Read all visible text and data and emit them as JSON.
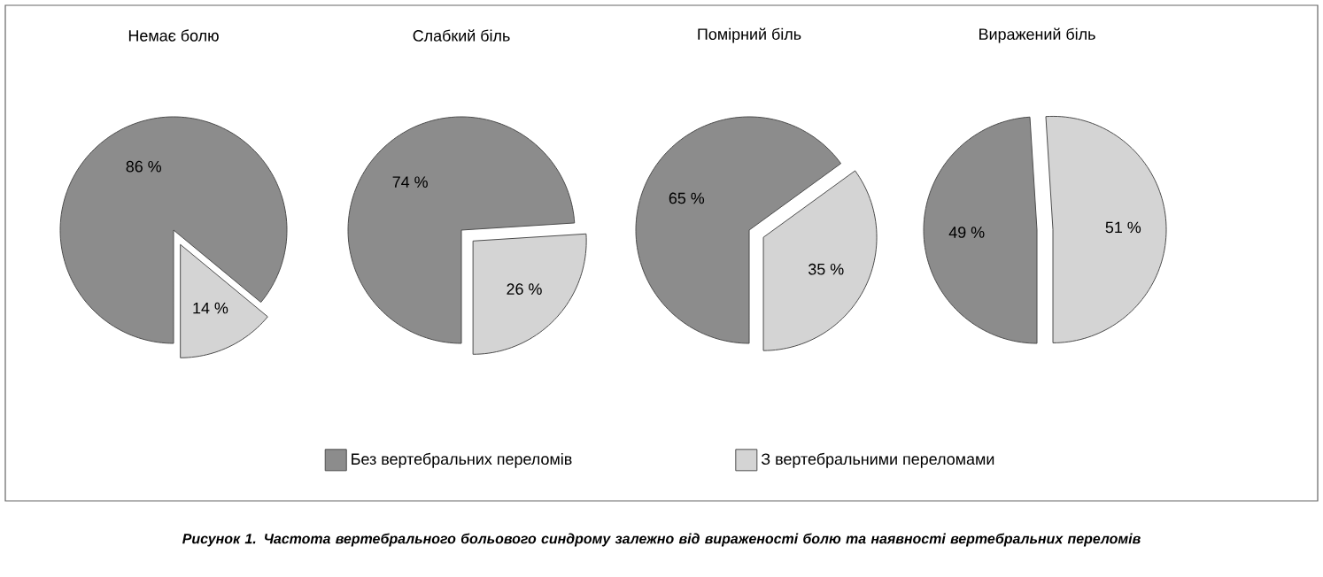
{
  "chart_data": [
    {
      "type": "pie",
      "title": "Немає болю",
      "categories": [
        "Без вертебральних переломів",
        "З вертебральними переломами"
      ],
      "values": [
        86,
        14
      ],
      "colors": [
        "#8c8c8c",
        "#d4d4d4"
      ],
      "value_labels": [
        "86 %",
        "14 %"
      ],
      "legend": "bottom",
      "annotations": [
        "Рисунок 1. Частота вертебрального больового синдрому залежно від вираженості болю та наявності вертебральних переломів"
      ]
    },
    {
      "type": "pie",
      "title": "Слабкий біль",
      "values": [
        74,
        26
      ],
      "colors": [
        "#8c8c8c",
        "#d4d4d4"
      ],
      "value_labels": [
        "74 %",
        "26 %"
      ]
    },
    {
      "type": "pie",
      "title": "Помірний біль",
      "values": [
        65,
        35
      ],
      "colors": [
        "#8c8c8c",
        "#d4d4d4"
      ],
      "value_labels": [
        "65 %",
        "35 %"
      ]
    },
    {
      "type": "pie",
      "title": "Виражений біль",
      "values": [
        49,
        51
      ],
      "colors": [
        "#8c8c8c",
        "#d4d4d4"
      ],
      "value_labels": [
        "49 %",
        "51 %"
      ]
    }
  ]
}
